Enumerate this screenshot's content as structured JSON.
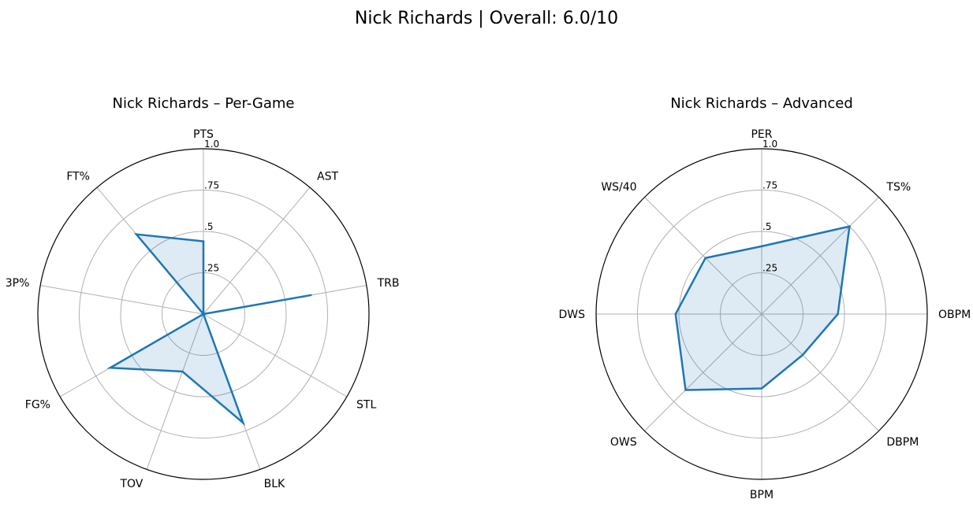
{
  "suptitle": "Nick Richards | Overall: 6.0/10",
  "chart_data": [
    {
      "type": "radar",
      "title": "Nick Richards – Per-Game",
      "categories": [
        "PTS",
        "AST",
        "TRB",
        "STL",
        "BLK",
        "TOV",
        "FG%",
        "3P%",
        "FT%"
      ],
      "values": [
        0.44,
        0.0,
        0.66,
        0.0,
        0.7,
        0.37,
        0.65,
        0.0,
        0.63
      ],
      "rlim": [
        0,
        1
      ],
      "rticks": [
        0.25,
        0.5,
        0.75,
        1.0
      ],
      "rtick_labels": [
        ".25",
        ".5",
        ".75",
        "1.0"
      ],
      "grid": true,
      "colors": {
        "line": "#1f77b4",
        "fill": "#1f77b4",
        "grid": "#b0b0b0",
        "spine": "#000000"
      }
    },
    {
      "type": "radar",
      "title": "Nick Richards – Advanced",
      "categories": [
        "PER",
        "TS%",
        "OBPM",
        "DBPM",
        "BPM",
        "OWS",
        "DWS",
        "WS/40"
      ],
      "values": [
        0.41,
        0.75,
        0.46,
        0.35,
        0.45,
        0.65,
        0.52,
        0.48
      ],
      "rlim": [
        0,
        1
      ],
      "rticks": [
        0.25,
        0.5,
        0.75,
        1.0
      ],
      "rtick_labels": [
        ".25",
        ".5",
        ".75",
        "1.0"
      ],
      "grid": true,
      "colors": {
        "line": "#1f77b4",
        "fill": "#1f77b4",
        "grid": "#b0b0b0",
        "spine": "#000000"
      }
    }
  ]
}
